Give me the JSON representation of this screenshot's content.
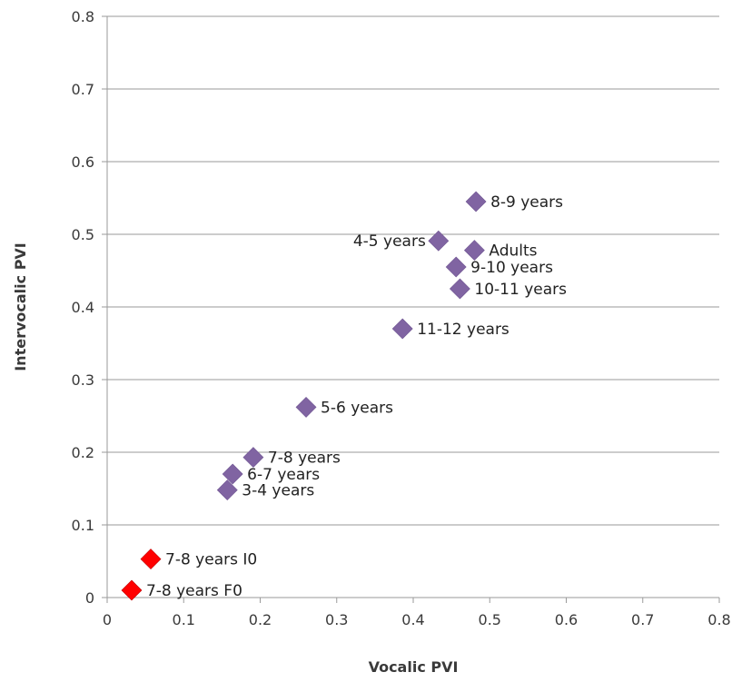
{
  "chart_data": {
    "type": "scatter",
    "xlabel": "Vocalic PVI",
    "ylabel": "Intervocalic PVI",
    "xlim": [
      0,
      0.8
    ],
    "ylim": [
      0,
      0.8
    ],
    "x_ticks": [
      "0",
      "0.1",
      "0.2",
      "0.3",
      "0.4",
      "0.5",
      "0.6",
      "0.7",
      "0.8"
    ],
    "y_ticks": [
      "0",
      "0.1",
      "0.2",
      "0.3",
      "0.4",
      "0.5",
      "0.6",
      "0.7",
      "0.8"
    ],
    "grid": "horizontal",
    "colors": {
      "purple": "#8064a2",
      "red": "#ff0000",
      "grid": "#9a9a9a"
    },
    "points": [
      {
        "label": "8-9 years",
        "x": 0.482,
        "y": 0.545,
        "color": "purple",
        "label_side": "right"
      },
      {
        "label": "4-5 years",
        "x": 0.433,
        "y": 0.491,
        "color": "purple",
        "label_side": "left"
      },
      {
        "label": "Adults",
        "x": 0.48,
        "y": 0.478,
        "color": "purple",
        "label_side": "right"
      },
      {
        "label": "9-10 years",
        "x": 0.456,
        "y": 0.455,
        "color": "purple",
        "label_side": "right"
      },
      {
        "label": "10-11 years",
        "x": 0.461,
        "y": 0.425,
        "color": "purple",
        "label_side": "right"
      },
      {
        "label": "11-12 years",
        "x": 0.386,
        "y": 0.37,
        "color": "purple",
        "label_side": "right"
      },
      {
        "label": "5-6 years",
        "x": 0.26,
        "y": 0.262,
        "color": "purple",
        "label_side": "right"
      },
      {
        "label": "7-8 years",
        "x": 0.191,
        "y": 0.193,
        "color": "purple",
        "label_side": "right"
      },
      {
        "label": "6-7 years",
        "x": 0.164,
        "y": 0.17,
        "color": "purple",
        "label_side": "right"
      },
      {
        "label": "3-4 years",
        "x": 0.157,
        "y": 0.148,
        "color": "purple",
        "label_side": "right"
      },
      {
        "label": "7-8 years I0",
        "x": 0.057,
        "y": 0.053,
        "color": "red",
        "label_side": "right"
      },
      {
        "label": "7-8 years F0",
        "x": 0.032,
        "y": 0.01,
        "color": "red",
        "label_side": "right"
      }
    ]
  }
}
